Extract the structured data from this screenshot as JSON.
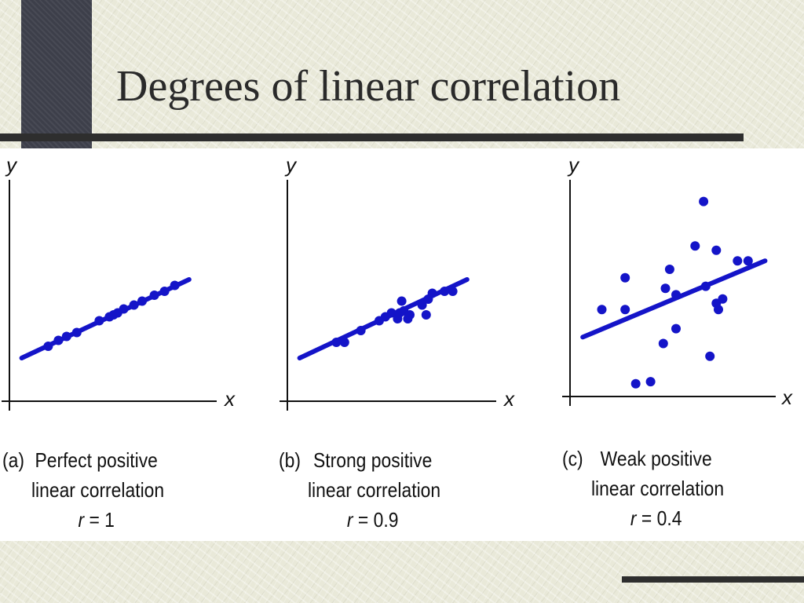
{
  "slide": {
    "title": "Degrees of linear correlation"
  },
  "panels": [
    {
      "tag": "(a)",
      "caption_line1": "Perfect positive",
      "caption_line2": "linear correlation",
      "r_var": "r",
      "r_value": "= 1",
      "x_label": "x",
      "y_label": "y"
    },
    {
      "tag": "(b)",
      "caption_line1": "Strong positive",
      "caption_line2": "linear correlation",
      "r_var": "r",
      "r_value": "= 0.9",
      "x_label": "x",
      "y_label": "y"
    },
    {
      "tag": "(c)",
      "caption_line1": "Weak positive",
      "caption_line2": "linear correlation",
      "r_var": "r",
      "r_value": "= 0.4",
      "x_label": "x",
      "y_label": "y"
    }
  ],
  "colors": {
    "points": "#1414c8",
    "fit_line": "#1414c8",
    "axes": "#111111"
  },
  "chart_data": [
    {
      "type": "scatter",
      "xlabel": "x",
      "ylabel": "y",
      "xlim": [
        0,
        10
      ],
      "ylim": [
        0,
        10
      ],
      "r": 1,
      "fit_line": [
        [
          0.6,
          2.2
        ],
        [
          8.8,
          6.2
        ]
      ],
      "points": [
        [
          1.9,
          2.8
        ],
        [
          2.4,
          3.1
        ],
        [
          2.8,
          3.3
        ],
        [
          3.3,
          3.5
        ],
        [
          4.4,
          4.1
        ],
        [
          4.9,
          4.3
        ],
        [
          5.1,
          4.4
        ],
        [
          5.3,
          4.5
        ],
        [
          5.6,
          4.7
        ],
        [
          6.1,
          4.9
        ],
        [
          6.5,
          5.1
        ],
        [
          7.1,
          5.4
        ],
        [
          7.6,
          5.6
        ],
        [
          8.1,
          5.9
        ]
      ]
    },
    {
      "type": "scatter",
      "xlabel": "x",
      "ylabel": "y",
      "xlim": [
        0,
        10
      ],
      "ylim": [
        0,
        10
      ],
      "r": 0.9,
      "fit_line": [
        [
          0.6,
          2.2
        ],
        [
          8.8,
          6.2
        ]
      ],
      "points": [
        [
          2.4,
          3.0
        ],
        [
          2.8,
          3.0
        ],
        [
          3.6,
          3.6
        ],
        [
          4.5,
          4.1
        ],
        [
          4.8,
          4.3
        ],
        [
          5.1,
          4.5
        ],
        [
          5.4,
          4.2
        ],
        [
          5.5,
          4.5
        ],
        [
          5.6,
          5.1
        ],
        [
          5.7,
          4.6
        ],
        [
          5.9,
          4.2
        ],
        [
          6.0,
          4.4
        ],
        [
          6.6,
          4.9
        ],
        [
          6.8,
          4.4
        ],
        [
          6.9,
          5.2
        ],
        [
          7.1,
          5.5
        ],
        [
          7.7,
          5.6
        ],
        [
          8.1,
          5.6
        ]
      ]
    },
    {
      "type": "scatter",
      "xlabel": "x",
      "ylabel": "y",
      "xlim": [
        0,
        10
      ],
      "ylim": [
        0,
        10
      ],
      "r": 0.4,
      "fit_line": [
        [
          0.6,
          2.8
        ],
        [
          9.2,
          6.4
        ]
      ],
      "points": [
        [
          1.5,
          4.1
        ],
        [
          2.6,
          4.1
        ],
        [
          2.6,
          5.6
        ],
        [
          3.1,
          0.6
        ],
        [
          3.8,
          0.7
        ],
        [
          4.4,
          2.5
        ],
        [
          4.5,
          5.1
        ],
        [
          4.7,
          6.0
        ],
        [
          5.0,
          3.2
        ],
        [
          5.0,
          4.8
        ],
        [
          5.9,
          7.1
        ],
        [
          6.3,
          9.2
        ],
        [
          6.4,
          5.2
        ],
        [
          6.6,
          1.9
        ],
        [
          6.9,
          4.4
        ],
        [
          6.9,
          6.9
        ],
        [
          7.0,
          4.1
        ],
        [
          7.2,
          4.6
        ],
        [
          7.9,
          6.4
        ],
        [
          8.4,
          6.4
        ]
      ]
    }
  ]
}
